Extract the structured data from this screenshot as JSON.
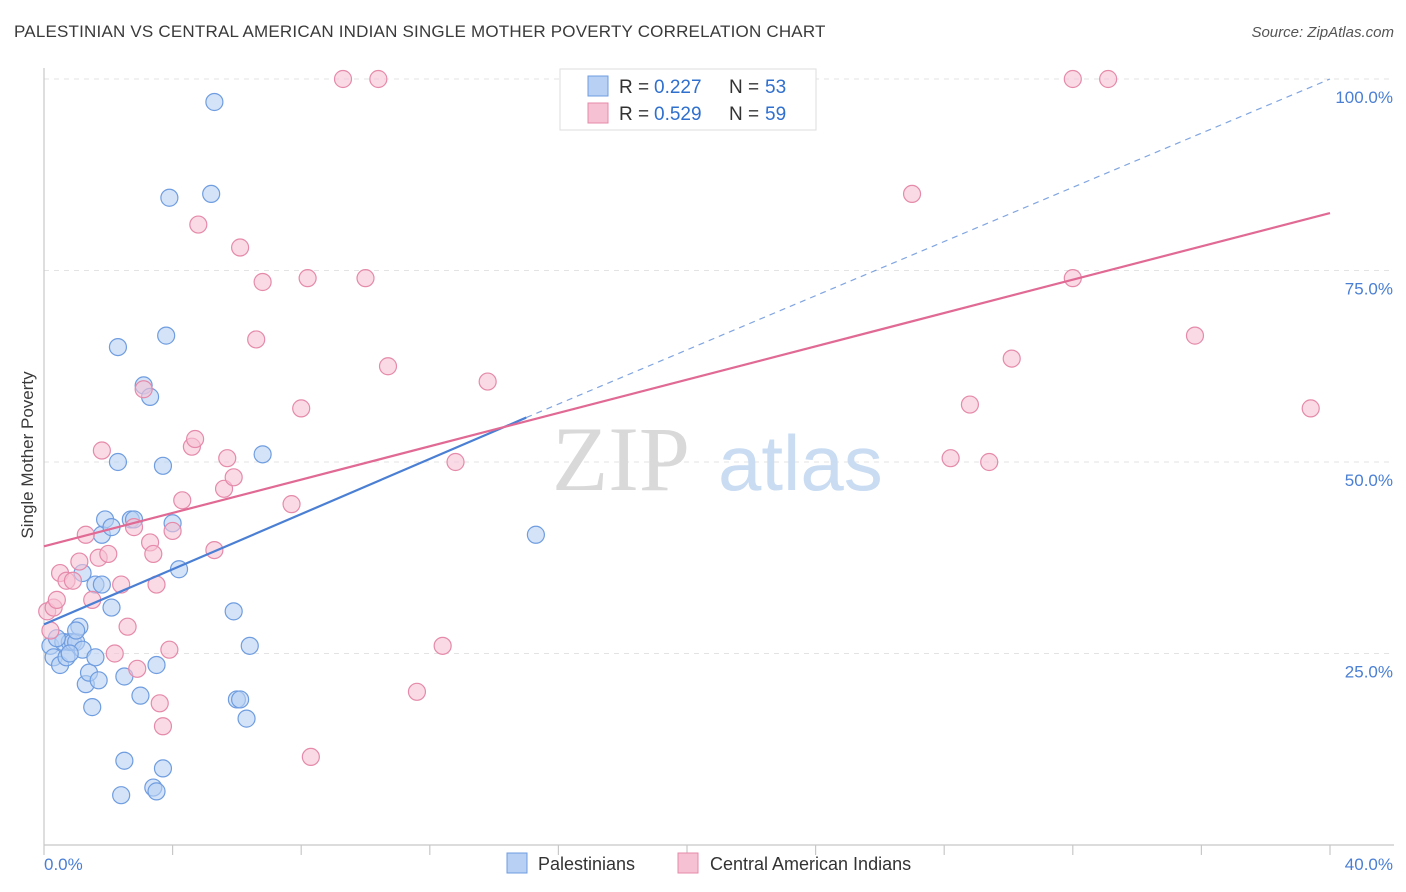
{
  "title": "PALESTINIAN VS CENTRAL AMERICAN INDIAN SINGLE MOTHER POVERTY CORRELATION CHART",
  "source": "Source: ZipAtlas.com",
  "watermark": {
    "zip": "ZIP",
    "atlas": "atlas"
  },
  "colors": {
    "blue": "#4a7fd4",
    "blue_fill": "#b7d0f3",
    "pink": "#e06a94",
    "pink_fill": "#f6c2d3"
  },
  "legend": {
    "r_label": "R =",
    "n_label": "N =",
    "rows": [
      {
        "series": "Palestinians",
        "r": "0.227",
        "n": "53"
      },
      {
        "series": "Central American Indians",
        "r": "0.529",
        "n": "59"
      }
    ]
  },
  "chart_data": {
    "type": "scatter",
    "ylabel": "Single Mother Poverty",
    "xlim": [
      0,
      40
    ],
    "ylim": [
      0,
      100
    ],
    "x_ticks": [
      "0.0%",
      "40.0%"
    ],
    "y_ticks": [
      {
        "value": 25,
        "label": "25.0%"
      },
      {
        "value": 50,
        "label": "50.0%"
      },
      {
        "value": 75,
        "label": "75.0%"
      },
      {
        "value": 100,
        "label": "100.0%"
      }
    ],
    "series": [
      {
        "name": "Palestinians",
        "color": "#4a7fd4",
        "trend": {
          "x": [
            0,
            15
          ],
          "y": [
            28.8,
            55.8
          ],
          "dashed_to": [
            40,
            100
          ]
        },
        "points": [
          [
            0.2,
            26
          ],
          [
            0.3,
            24.5
          ],
          [
            0.5,
            23.5
          ],
          [
            0.6,
            26.5
          ],
          [
            0.7,
            24.5
          ],
          [
            0.8,
            26.5
          ],
          [
            0.9,
            26.5
          ],
          [
            1.0,
            26.5
          ],
          [
            1.1,
            28.5
          ],
          [
            1.2,
            25.5
          ],
          [
            1.2,
            35.5
          ],
          [
            1.3,
            21
          ],
          [
            1.4,
            22.5
          ],
          [
            1.5,
            18
          ],
          [
            1.6,
            24.5
          ],
          [
            1.6,
            34
          ],
          [
            1.7,
            21.5
          ],
          [
            1.8,
            34
          ],
          [
            1.8,
            40.5
          ],
          [
            1.9,
            42.5
          ],
          [
            2.1,
            31
          ],
          [
            2.1,
            41.5
          ],
          [
            2.3,
            65
          ],
          [
            2.3,
            50
          ],
          [
            2.5,
            22
          ],
          [
            2.5,
            11
          ],
          [
            2.7,
            42.5
          ],
          [
            2.8,
            42.5
          ],
          [
            3.0,
            19.5
          ],
          [
            3.1,
            60
          ],
          [
            3.3,
            58.5
          ],
          [
            3.4,
            7.5
          ],
          [
            3.5,
            23.5
          ],
          [
            3.7,
            49.5
          ],
          [
            3.7,
            10
          ],
          [
            3.8,
            66.5
          ],
          [
            3.9,
            84.5
          ],
          [
            4.0,
            42
          ],
          [
            4.2,
            36
          ],
          [
            5.2,
            85
          ],
          [
            5.3,
            97
          ],
          [
            5.9,
            30.5
          ],
          [
            6.0,
            19
          ],
          [
            6.1,
            19
          ],
          [
            6.3,
            16.5
          ],
          [
            6.4,
            26
          ],
          [
            6.8,
            51
          ],
          [
            15.3,
            40.5
          ],
          [
            2.4,
            6.5
          ],
          [
            3.5,
            7
          ],
          [
            1.0,
            28
          ],
          [
            0.4,
            27
          ],
          [
            0.8,
            25
          ]
        ]
      },
      {
        "name": "Central American Indians",
        "color": "#e06a94",
        "trend": {
          "x": [
            0,
            40
          ],
          "y": [
            39,
            82.5
          ]
        },
        "points": [
          [
            0.1,
            30.5
          ],
          [
            0.2,
            28
          ],
          [
            0.3,
            31
          ],
          [
            0.4,
            32
          ],
          [
            0.5,
            35.5
          ],
          [
            0.7,
            34.5
          ],
          [
            0.9,
            34.5
          ],
          [
            1.1,
            37
          ],
          [
            1.3,
            40.5
          ],
          [
            1.5,
            32
          ],
          [
            1.7,
            37.5
          ],
          [
            1.8,
            51.5
          ],
          [
            2.0,
            38
          ],
          [
            2.2,
            25
          ],
          [
            2.4,
            34
          ],
          [
            2.6,
            28.5
          ],
          [
            2.8,
            41.5
          ],
          [
            2.9,
            23
          ],
          [
            3.1,
            59.5
          ],
          [
            3.3,
            39.5
          ],
          [
            3.4,
            38
          ],
          [
            3.5,
            34
          ],
          [
            3.6,
            18.5
          ],
          [
            3.7,
            15.5
          ],
          [
            3.9,
            25.5
          ],
          [
            4.0,
            41
          ],
          [
            4.3,
            45
          ],
          [
            4.6,
            52
          ],
          [
            4.7,
            53
          ],
          [
            4.8,
            81
          ],
          [
            5.3,
            38.5
          ],
          [
            5.6,
            46.5
          ],
          [
            5.7,
            50.5
          ],
          [
            5.9,
            48
          ],
          [
            6.1,
            78
          ],
          [
            6.6,
            66
          ],
          [
            6.8,
            73.5
          ],
          [
            7.7,
            44.5
          ],
          [
            8.0,
            57
          ],
          [
            8.2,
            74
          ],
          [
            8.3,
            11.5
          ],
          [
            9.3,
            100
          ],
          [
            10.0,
            74
          ],
          [
            10.4,
            100
          ],
          [
            10.7,
            62.5
          ],
          [
            11.6,
            20
          ],
          [
            12.4,
            26
          ],
          [
            12.8,
            50
          ],
          [
            13.8,
            60.5
          ],
          [
            27.0,
            85
          ],
          [
            28.2,
            50.5
          ],
          [
            28.8,
            57.5
          ],
          [
            29.4,
            50
          ],
          [
            30.1,
            63.5
          ],
          [
            32.0,
            74
          ],
          [
            32.0,
            100
          ],
          [
            33.1,
            100
          ],
          [
            35.8,
            66.5
          ],
          [
            39.4,
            57
          ]
        ]
      }
    ]
  }
}
